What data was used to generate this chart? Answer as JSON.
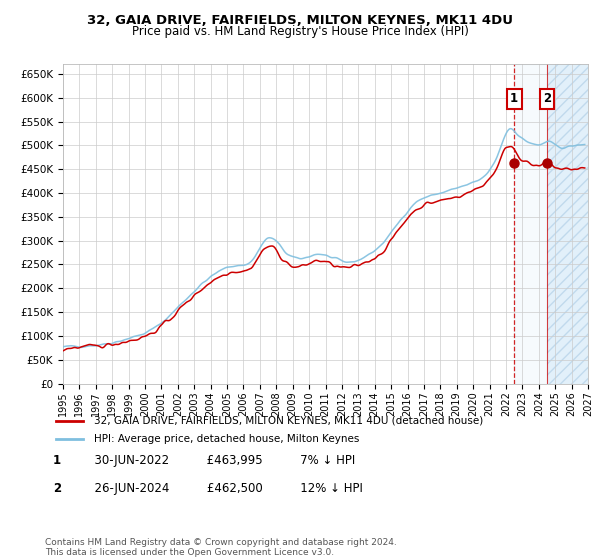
{
  "title1": "32, GAIA DRIVE, FAIRFIELDS, MILTON KEYNES, MK11 4DU",
  "title2": "Price paid vs. HM Land Registry's House Price Index (HPI)",
  "legend1": "32, GAIA DRIVE, FAIRFIELDS, MILTON KEYNES, MK11 4DU (detached house)",
  "legend2": "HPI: Average price, detached house, Milton Keynes",
  "transaction1": {
    "label": "1",
    "date": "30-JUN-2022",
    "price": "£463,995",
    "hpi_note": "7% ↓ HPI"
  },
  "transaction2": {
    "label": "2",
    "date": "26-JUN-2024",
    "price": "£462,500",
    "hpi_note": "12% ↓ HPI"
  },
  "footer": "Contains HM Land Registry data © Crown copyright and database right 2024.\nThis data is licensed under the Open Government Licence v3.0.",
  "hpi_color": "#7fbfdf",
  "price_color": "#cc0000",
  "marker_color": "#aa0000",
  "bg_color": "#ffffff",
  "grid_color": "#cccccc",
  "highlight_color": "#ddeeff",
  "ylim": [
    0,
    670000
  ],
  "xlim_start": 1995.0,
  "xlim_end": 2027.0,
  "transaction1_year": 2022.5,
  "transaction2_year": 2024.5,
  "t1_y": 463995,
  "t2_y": 462500
}
